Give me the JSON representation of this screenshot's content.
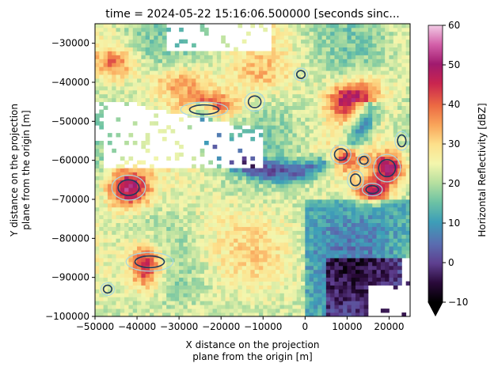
{
  "chart_data": {
    "type": "heatmap",
    "title": "time = 2024-05-22 15:16:06.500000 [seconds sinc...",
    "xlabel_line1": "X distance on the projection",
    "xlabel_line2": "plane from the origin [m]",
    "ylabel_line1": "Y distance on the projection",
    "ylabel_line2": "plane from the origin [m]",
    "colorbar_label": "Horizontal Reflectivity [dBZ]",
    "xlim": [
      -50000,
      25000
    ],
    "ylim": [
      -100000,
      -25000
    ],
    "clim": [
      -10,
      60
    ],
    "colormap": "spectral-reversed",
    "colorbar_extend": "min",
    "x_ticks": [
      -50000,
      -40000,
      -30000,
      -20000,
      -10000,
      0,
      10000,
      20000
    ],
    "x_tick_labels": [
      "−50000",
      "−40000",
      "−30000",
      "−20000",
      "−10000",
      "0",
      "10000",
      "20000"
    ],
    "y_ticks": [
      -30000,
      -40000,
      -50000,
      -60000,
      -70000,
      -80000,
      -90000,
      -100000
    ],
    "y_tick_labels": [
      "−30000",
      "−40000",
      "−50000",
      "−60000",
      "−70000",
      "−80000",
      "−90000",
      "−100000"
    ],
    "cbar_ticks": [
      60,
      50,
      40,
      30,
      20,
      10,
      0,
      -10
    ],
    "cbar_tick_labels": [
      "60",
      "50",
      "40",
      "30",
      "20",
      "10",
      "0",
      "−10"
    ],
    "grid": false,
    "reflectivity_features": [
      {
        "x": -42000,
        "y": -67000,
        "sx": 5000,
        "sy": 5000,
        "dbz": 50
      },
      {
        "x": -38000,
        "y": -87000,
        "sx": 4000,
        "sy": 6000,
        "dbz": 48
      },
      {
        "x": -22000,
        "y": -46000,
        "sx": 7000,
        "sy": 3500,
        "dbz": 42
      },
      {
        "x": -30000,
        "y": -40000,
        "sx": 7000,
        "sy": 4000,
        "dbz": 36
      },
      {
        "x": -45000,
        "y": -35000,
        "sx": 5000,
        "sy": 4000,
        "dbz": 38
      },
      {
        "x": 10000,
        "y": -45000,
        "sx": 5000,
        "sy": 4000,
        "dbz": 44
      },
      {
        "x": 9000,
        "y": -59000,
        "sx": 3500,
        "sy": 3000,
        "dbz": 50
      },
      {
        "x": 20000,
        "y": -62000,
        "sx": 4000,
        "sy": 4000,
        "dbz": 50
      },
      {
        "x": 16000,
        "y": -68000,
        "sx": 4000,
        "sy": 3000,
        "dbz": 46
      },
      {
        "x": 14000,
        "y": -42000,
        "sx": 6000,
        "sy": 4000,
        "dbz": 34
      },
      {
        "x": -10000,
        "y": -38000,
        "sx": 8000,
        "sy": 5000,
        "dbz": 30
      },
      {
        "x": -20000,
        "y": -80000,
        "sx": 9000,
        "sy": 5000,
        "dbz": 20
      }
    ],
    "contour_cells": [
      {
        "x": -42000,
        "y": -67000,
        "rx": 2500,
        "ry": 2000
      },
      {
        "x": -37000,
        "y": -86000,
        "rx": 3500,
        "ry": 1500
      },
      {
        "x": 8500,
        "y": -58500,
        "rx": 1500,
        "ry": 1500
      },
      {
        "x": 19500,
        "y": -62000,
        "rx": 2000,
        "ry": 2200
      },
      {
        "x": 16000,
        "y": -67500,
        "rx": 1500,
        "ry": 1000
      },
      {
        "x": 12000,
        "y": -65000,
        "rx": 1200,
        "ry": 1500
      },
      {
        "x": 14000,
        "y": -60000,
        "rx": 1000,
        "ry": 1000
      },
      {
        "x": -24000,
        "y": -47000,
        "rx": 3500,
        "ry": 1200
      },
      {
        "x": -12000,
        "y": -45000,
        "rx": 1500,
        "ry": 1500
      },
      {
        "x": -1000,
        "y": -38000,
        "rx": 1000,
        "ry": 1000
      },
      {
        "x": 23000,
        "y": -55000,
        "rx": 1000,
        "ry": 1500
      },
      {
        "x": -47000,
        "y": -93000,
        "rx": 1000,
        "ry": 1000
      }
    ]
  }
}
